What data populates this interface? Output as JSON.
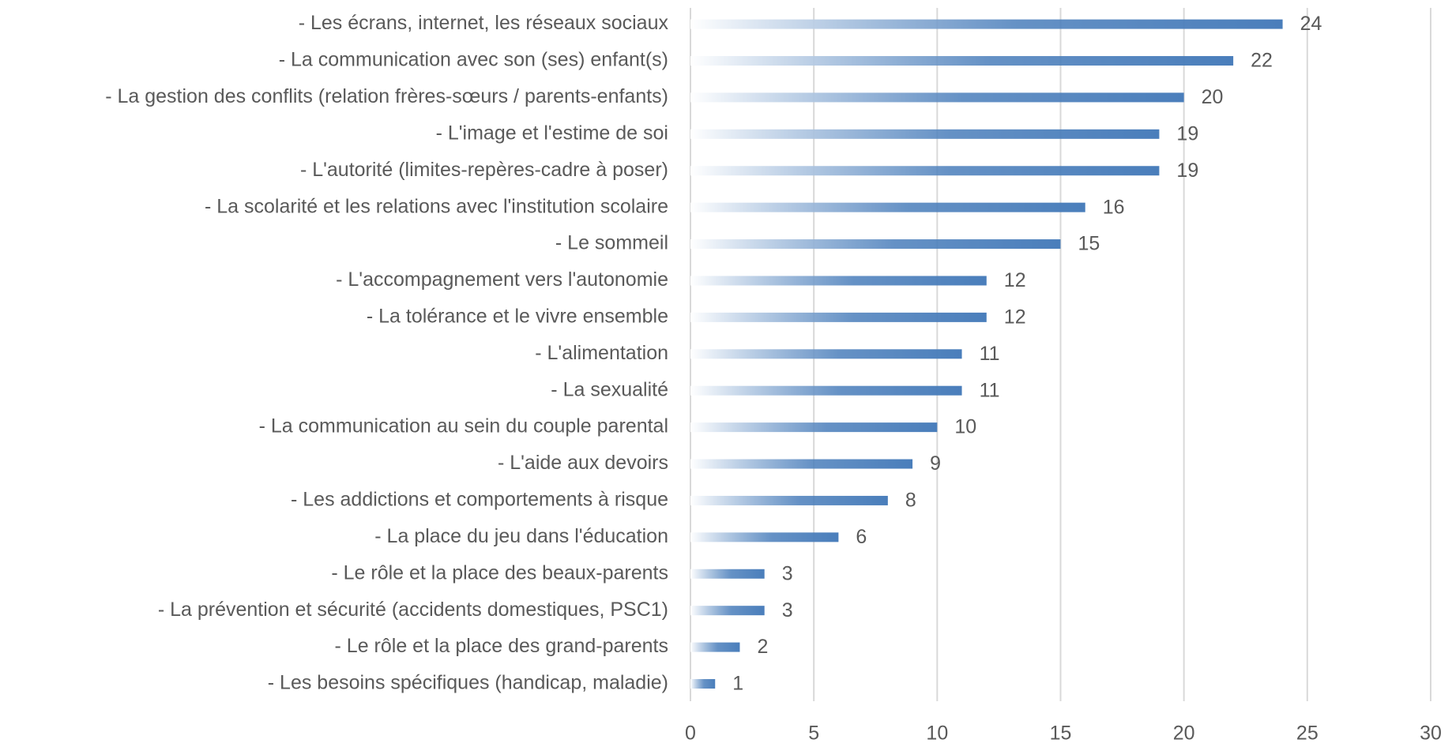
{
  "chart_data": {
    "type": "hbar",
    "categories": [
      "- Les écrans, internet, les réseaux sociaux",
      "- La communication avec son (ses) enfant(s)",
      "- La gestion des conflits (relation frères-sœurs / parents-enfants)",
      "- L'image et l'estime de soi",
      "- L'autorité (limites-repères-cadre à poser)",
      "- La scolarité et les relations avec l'institution scolaire",
      "- Le sommeil",
      "- L'accompagnement vers l'autonomie",
      "- La tolérance et le vivre ensemble",
      "- L'alimentation",
      "- La sexualité",
      "- La communication au sein du couple parental",
      "- L'aide aux devoirs",
      "- Les addictions et comportements à risque",
      "- La place du jeu dans l'éducation",
      "- Le rôle et la place des beaux-parents",
      "- La prévention et sécurité (accidents domestiques, PSC1)",
      "- Le rôle et la place des grand-parents",
      "- Les besoins spécifiques (handicap, maladie)"
    ],
    "values": [
      24,
      22,
      20,
      19,
      19,
      16,
      15,
      12,
      12,
      11,
      11,
      10,
      9,
      8,
      6,
      3,
      3,
      2,
      1
    ],
    "color": "#4a7ebb",
    "xlim": [
      0,
      30
    ],
    "xticks": [
      0,
      5,
      10,
      15,
      20,
      25,
      30
    ],
    "grid": true
  }
}
